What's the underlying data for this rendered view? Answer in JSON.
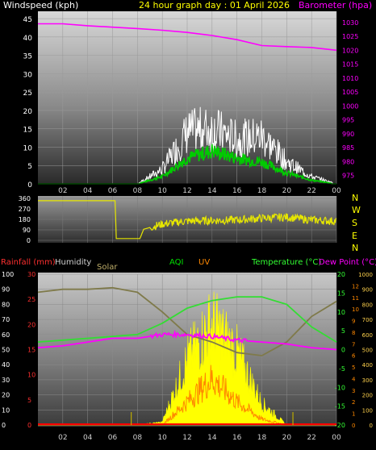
{
  "header": {
    "windspeed_label": "Windspeed (kph)",
    "title": "24 hour graph day : 01 April 2026",
    "barometer_label": "Barometer (hpa)"
  },
  "compass": [
    "N",
    "W",
    "S",
    "E",
    "N"
  ],
  "bottom_labels": {
    "rainfall": "Rainfall (mm)",
    "humidity": "Humidity",
    "solar": "Solar",
    "aqi": "AQI",
    "uv": "UV",
    "temperature": "Temperature (°C)",
    "dewpoint": "Dew Point (°C)"
  },
  "colors": {
    "windspeed": "#ffffff",
    "windavg": "#00cc00",
    "barometer": "#ff00ff",
    "direction": "#e6e600",
    "temperature": "#33dd33",
    "dewpoint": "#ff00ff",
    "humidity": "#7f7a4a",
    "solar": "#ffff00",
    "uv": "#ff8800",
    "rainfall": "#ff0000",
    "aqi": "#00cc00"
  },
  "chart_data": [
    {
      "type": "line",
      "title": "24 hour graph day : 01 April 2026",
      "x_ticks": [
        "02",
        "04",
        "06",
        "08",
        "10",
        "12",
        "14",
        "16",
        "18",
        "20",
        "22",
        "00"
      ],
      "y_left": {
        "label": "Windspeed (kph)",
        "range": [
          0,
          47
        ],
        "ticks": [
          0,
          5,
          10,
          15,
          20,
          25,
          30,
          35,
          40,
          45
        ]
      },
      "y_right": {
        "label": "Barometer (hpa)",
        "range": [
          972,
          1034
        ],
        "ticks": [
          975,
          980,
          985,
          990,
          995,
          1000,
          1005,
          1010,
          1015,
          1020,
          1025,
          1030
        ]
      },
      "x_hours": [
        0,
        2,
        4,
        6,
        8,
        10,
        12,
        14,
        16,
        18,
        20,
        22,
        24
      ],
      "series": [
        {
          "name": "Windspeed (kph)",
          "axis": "left",
          "values": [
            0,
            0,
            0,
            0,
            0,
            4,
            14,
            15,
            12,
            13,
            6,
            2,
            0
          ]
        },
        {
          "name": "",
          "axis": "left",
          "values": [
            0,
            0,
            0,
            0,
            0,
            2,
            7,
            9,
            7,
            6,
            3,
            1,
            0
          ]
        },
        {
          "name": "Barometer (hpa)",
          "axis": "right",
          "values": [
            1029.5,
            1029.5,
            1028.8,
            1028.3,
            1027.8,
            1027.2,
            1026.4,
            1025.3,
            1023.8,
            1021.7,
            1021.3,
            1021.0,
            1020.0
          ]
        }
      ]
    },
    {
      "type": "line",
      "y_left": {
        "range": [
          0,
          360
        ],
        "ticks": [
          0,
          90,
          180,
          270,
          360
        ]
      },
      "compass_ticks": [
        "N",
        "W",
        "S",
        "E",
        "N"
      ],
      "x_hours": [
        0,
        6.2,
        6.3,
        8.2,
        8.5,
        10,
        12,
        14,
        16,
        18,
        20,
        22,
        24
      ],
      "series": [
        {
          "name": "",
          "values": [
            340,
            340,
            15,
            15,
            95,
            140,
            165,
            170,
            175,
            190,
            200,
            175,
            165
          ]
        }
      ]
    },
    {
      "type": "line",
      "x_ticks": [
        "02",
        "04",
        "06",
        "08",
        "10",
        "12",
        "14",
        "16",
        "18",
        "20",
        "22",
        "00"
      ],
      "y_left_humidity": {
        "label": "Humidity",
        "range": [
          0,
          100
        ],
        "ticks": [
          0,
          10,
          20,
          30,
          40,
          50,
          60,
          70,
          80,
          90,
          100
        ]
      },
      "y_left_rain": {
        "label": "Rainfall (mm)",
        "range": [
          0,
          30
        ],
        "ticks": [
          0,
          5,
          10,
          15,
          20,
          25,
          30
        ]
      },
      "y_right_temp": {
        "label": "Temperature (°C)",
        "range": [
          -20,
          20
        ],
        "ticks": [
          -20,
          -15,
          -10,
          -5,
          0,
          5,
          10,
          15,
          20
        ]
      },
      "y_right_solar": {
        "label": "Solar",
        "range": [
          0,
          1000
        ],
        "ticks": [
          0,
          100,
          200,
          300,
          400,
          500,
          600,
          700,
          800,
          900,
          1000
        ]
      },
      "y_right_uv": {
        "label": "UV",
        "ticks": [
          0,
          1,
          2,
          3,
          4,
          5,
          6,
          7,
          8,
          9,
          10,
          11,
          12
        ]
      },
      "x_hours": [
        0,
        2,
        4,
        6,
        8,
        10,
        12,
        14,
        16,
        18,
        20,
        22,
        24
      ],
      "series": [
        {
          "name": "Humidity",
          "values": [
            88,
            90,
            90,
            91,
            88,
            75,
            60,
            55,
            48,
            46,
            55,
            72,
            82
          ]
        },
        {
          "name": "Temperature (°C)",
          "values": [
            2,
            2.5,
            3,
            3.5,
            4,
            7,
            11,
            13,
            14,
            14,
            12,
            6,
            2
          ]
        },
        {
          "name": "Dew Point (°C)",
          "values": [
            0.5,
            1,
            2,
            3,
            3,
            4,
            4,
            3.5,
            2.5,
            2,
            1.5,
            0.5,
            0
          ]
        },
        {
          "name": "Solar",
          "values": [
            0,
            0,
            0,
            0,
            0,
            20,
            450,
            700,
            500,
            150,
            0,
            0,
            0
          ]
        },
        {
          "name": "UV",
          "values": [
            0,
            0,
            0,
            0,
            0,
            0,
            2,
            4,
            2,
            0.5,
            0,
            0,
            0
          ]
        },
        {
          "name": "Rainfall (mm)",
          "values": [
            0,
            0,
            0,
            0,
            0,
            0,
            0,
            0,
            0,
            0,
            0,
            0,
            0
          ]
        },
        {
          "name": "AQI",
          "values": []
        }
      ]
    }
  ]
}
